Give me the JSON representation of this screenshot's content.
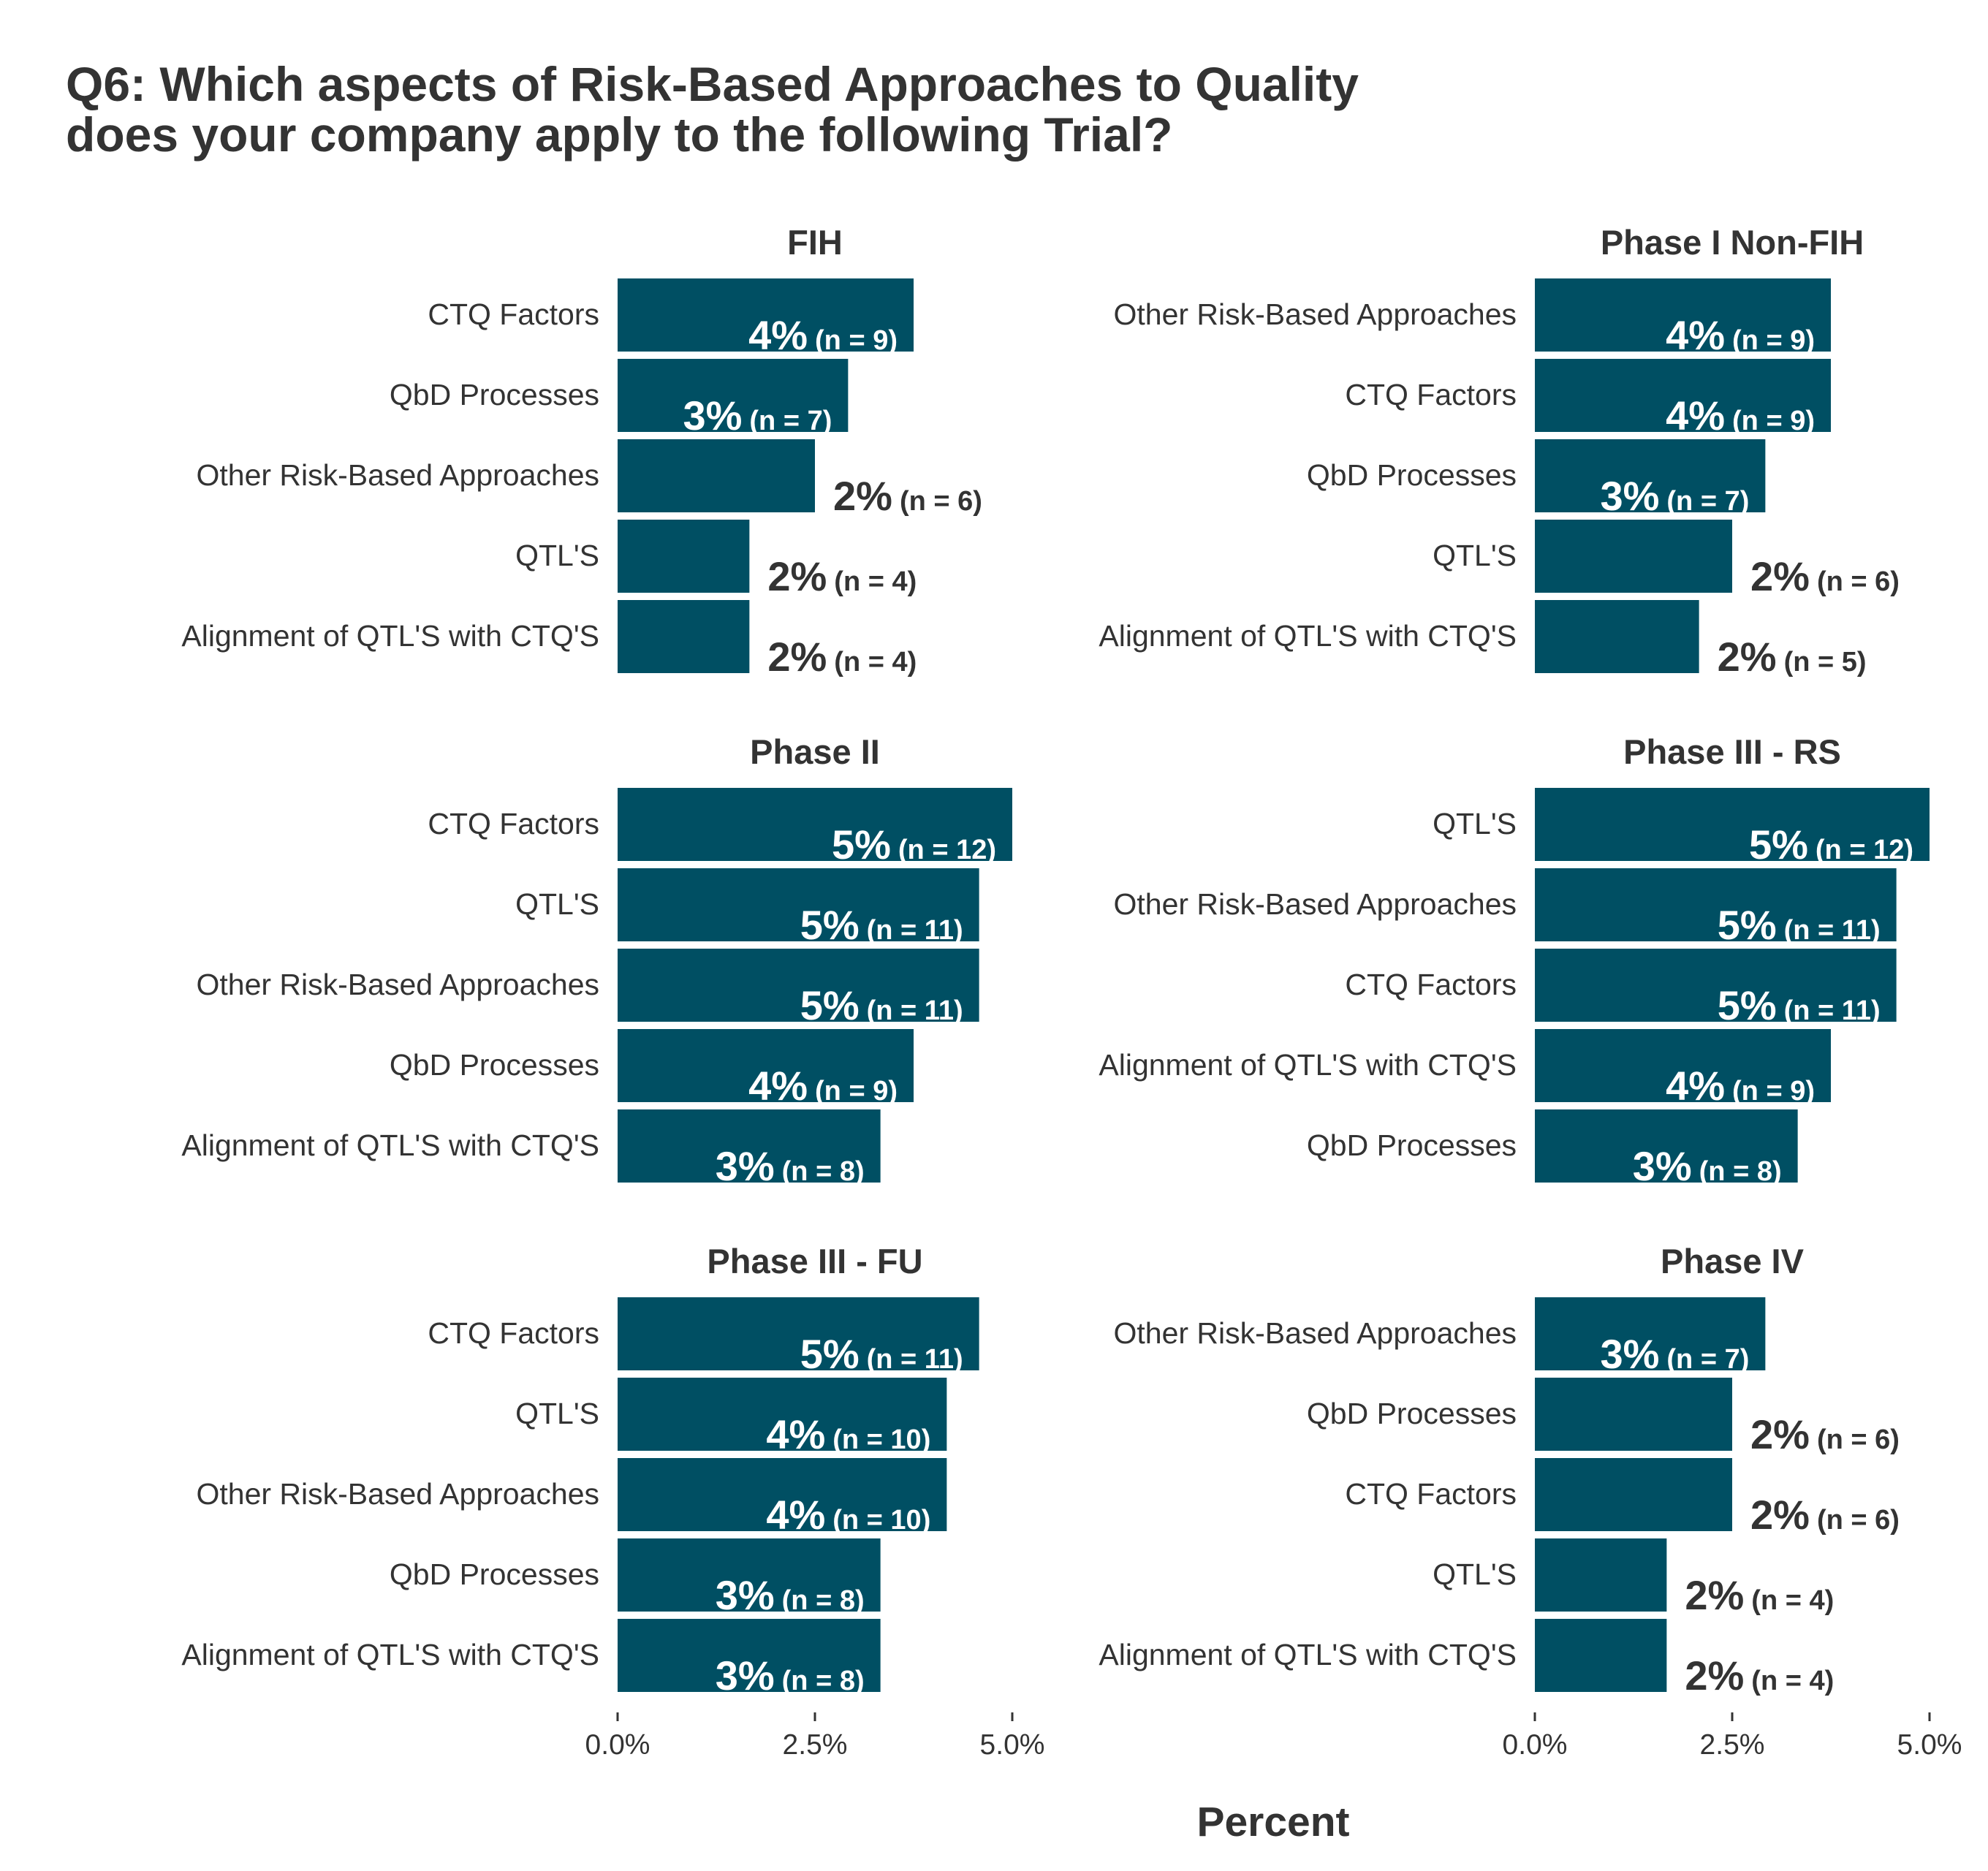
{
  "chart_data": {
    "type": "bar",
    "orientation": "horizontal",
    "title": [
      "Q6: Which aspects of Risk-Based Approaches to Quality",
      "does your company apply to the following Trial?"
    ],
    "xlabel": "Percent",
    "xlim": [
      0,
      5
    ],
    "xticks": [
      "0.0%",
      "2.5%",
      "5.0%"
    ],
    "bar_color": "#004F63",
    "facets": [
      {
        "title": "FIH",
        "bars": [
          {
            "category": "CTQ Factors",
            "value": 3.75,
            "label": "4%",
            "n": "(n = 9)"
          },
          {
            "category": "QbD Processes",
            "value": 2.92,
            "label": "3%",
            "n": "(n = 7)"
          },
          {
            "category": "Other Risk-Based Approaches",
            "value": 2.5,
            "label": "2%",
            "n": "(n = 6)"
          },
          {
            "category": "QTL'S",
            "value": 1.67,
            "label": "2%",
            "n": "(n = 4)"
          },
          {
            "category": "Alignment of QTL'S with CTQ'S",
            "value": 1.67,
            "label": "2%",
            "n": "(n = 4)"
          }
        ]
      },
      {
        "title": "Phase I Non-FIH",
        "bars": [
          {
            "category": "Other Risk-Based Approaches",
            "value": 3.75,
            "label": "4%",
            "n": "(n = 9)"
          },
          {
            "category": "CTQ Factors",
            "value": 3.75,
            "label": "4%",
            "n": "(n = 9)"
          },
          {
            "category": "QbD Processes",
            "value": 2.92,
            "label": "3%",
            "n": "(n = 7)"
          },
          {
            "category": "QTL'S",
            "value": 2.5,
            "label": "2%",
            "n": "(n = 6)"
          },
          {
            "category": "Alignment of QTL'S with CTQ'S",
            "value": 2.08,
            "label": "2%",
            "n": "(n = 5)"
          }
        ]
      },
      {
        "title": "Phase II",
        "bars": [
          {
            "category": "CTQ Factors",
            "value": 5.0,
            "label": "5%",
            "n": "(n = 12)"
          },
          {
            "category": "QTL'S",
            "value": 4.58,
            "label": "5%",
            "n": "(n = 11)"
          },
          {
            "category": "Other Risk-Based Approaches",
            "value": 4.58,
            "label": "5%",
            "n": "(n = 11)"
          },
          {
            "category": "QbD Processes",
            "value": 3.75,
            "label": "4%",
            "n": "(n = 9)"
          },
          {
            "category": "Alignment of QTL'S with CTQ'S",
            "value": 3.33,
            "label": "3%",
            "n": "(n = 8)"
          }
        ]
      },
      {
        "title": "Phase III - RS",
        "bars": [
          {
            "category": "QTL'S",
            "value": 5.0,
            "label": "5%",
            "n": "(n = 12)"
          },
          {
            "category": "Other Risk-Based Approaches",
            "value": 4.58,
            "label": "5%",
            "n": "(n = 11)"
          },
          {
            "category": "CTQ Factors",
            "value": 4.58,
            "label": "5%",
            "n": "(n = 11)"
          },
          {
            "category": "Alignment of QTL'S with CTQ'S",
            "value": 3.75,
            "label": "4%",
            "n": "(n = 9)"
          },
          {
            "category": "QbD Processes",
            "value": 3.33,
            "label": "3%",
            "n": "(n = 8)"
          }
        ]
      },
      {
        "title": "Phase III - FU",
        "bars": [
          {
            "category": "CTQ Factors",
            "value": 4.58,
            "label": "5%",
            "n": "(n = 11)"
          },
          {
            "category": "QTL'S",
            "value": 4.17,
            "label": "4%",
            "n": "(n = 10)"
          },
          {
            "category": "Other Risk-Based Approaches",
            "value": 4.17,
            "label": "4%",
            "n": "(n = 10)"
          },
          {
            "category": "QbD Processes",
            "value": 3.33,
            "label": "3%",
            "n": "(n = 8)"
          },
          {
            "category": "Alignment of QTL'S with CTQ'S",
            "value": 3.33,
            "label": "3%",
            "n": "(n = 8)"
          }
        ]
      },
      {
        "title": "Phase IV",
        "bars": [
          {
            "category": "Other Risk-Based Approaches",
            "value": 2.92,
            "label": "3%",
            "n": "(n = 7)"
          },
          {
            "category": "QbD Processes",
            "value": 2.5,
            "label": "2%",
            "n": "(n = 6)"
          },
          {
            "category": "CTQ Factors",
            "value": 2.5,
            "label": "2%",
            "n": "(n = 6)"
          },
          {
            "category": "QTL'S",
            "value": 1.67,
            "label": "2%",
            "n": "(n = 4)"
          },
          {
            "category": "Alignment of QTL'S with CTQ'S",
            "value": 1.67,
            "label": "2%",
            "n": "(n = 4)"
          }
        ]
      }
    ]
  }
}
